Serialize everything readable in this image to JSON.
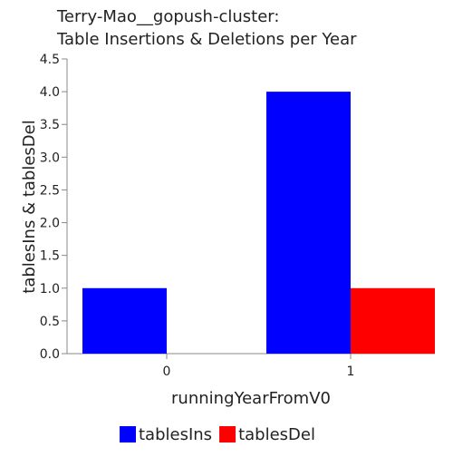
{
  "chart_data": {
    "type": "bar",
    "title_lines": [
      "Terry-Mao__gopush-cluster:",
      "Table Insertions & Deletions per Year"
    ],
    "xlabel": "runningYearFromV0",
    "ylabel": "tablesIns & tablesDel",
    "categories": [
      "0",
      "1"
    ],
    "series": [
      {
        "name": "tablesIns",
        "color": "#0000ff",
        "values": [
          1.0,
          4.0
        ]
      },
      {
        "name": "tablesDel",
        "color": "#ff0000",
        "values": [
          0.0,
          1.0
        ]
      }
    ],
    "ylim": [
      0,
      4.5
    ],
    "yticks": [
      "0.0",
      "0.5",
      "1.0",
      "1.5",
      "2.0",
      "2.5",
      "3.0",
      "3.5",
      "4.0",
      "4.5"
    ],
    "grid": false,
    "legend_position": "bottom"
  }
}
